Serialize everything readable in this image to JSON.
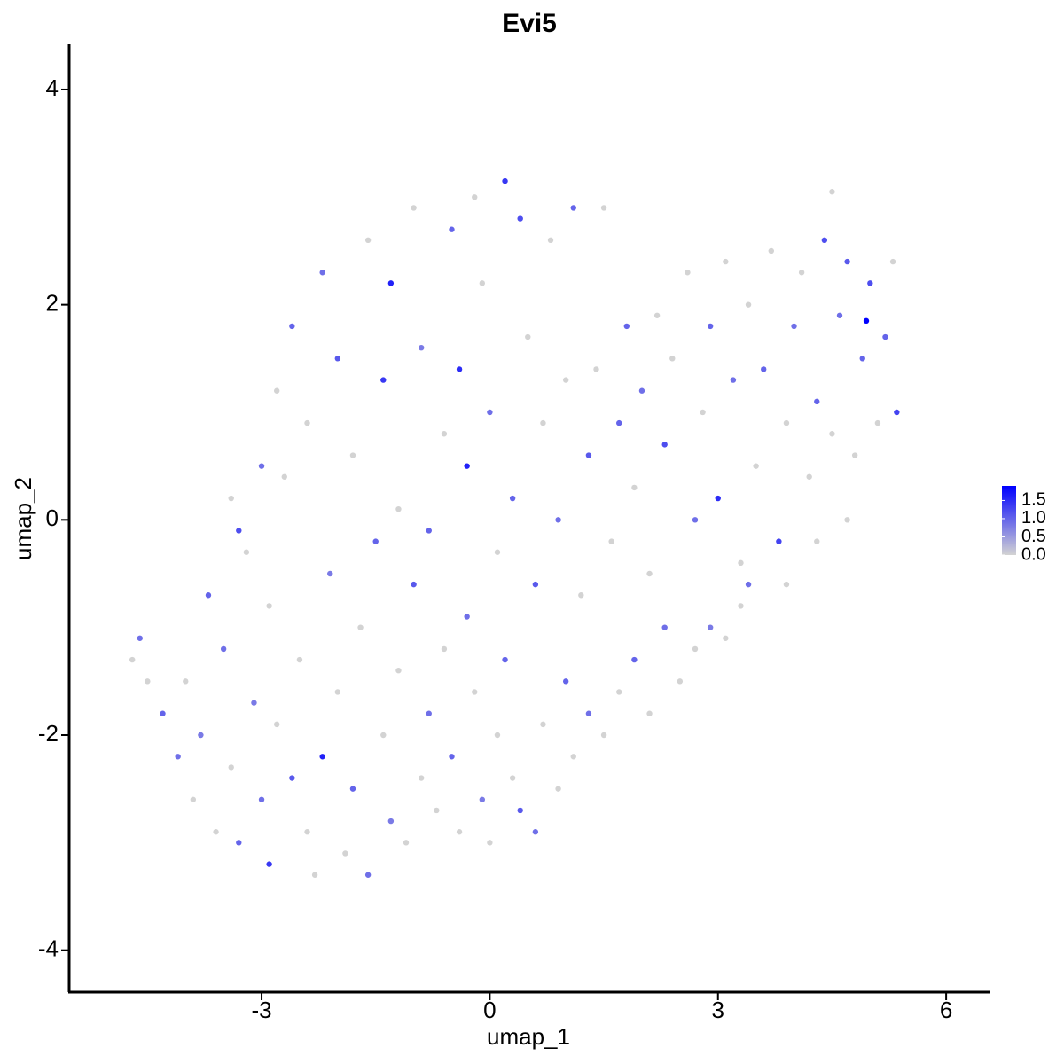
{
  "chart_data": {
    "type": "scatter",
    "title": "Evi5",
    "x_label": "umap_1",
    "y_label": "umap_2",
    "xlim": [
      -5.53,
      6.57
    ],
    "xticks": [
      -3,
      0,
      3,
      6
    ],
    "ylim": [
      -4.39,
      4.42
    ],
    "yticks": [
      -4,
      -2,
      0,
      2,
      4
    ],
    "color_scale": [
      "#d3d3d3",
      "#0000ff"
    ],
    "color_range": [
      0,
      1.9
    ],
    "colorbar_ticks": [
      {
        "value": 0,
        "label": "0.0"
      },
      {
        "value": 0.5,
        "label": "0.5"
      },
      {
        "value": 1,
        "label": "1.0"
      },
      {
        "value": 1.5,
        "label": "1.5"
      }
    ],
    "x": [
      -4.7,
      -4.6,
      -4.5,
      -4.3,
      -4.1,
      -4.0,
      -3.9,
      -3.8,
      -3.7,
      -3.6,
      -3.5,
      -3.4,
      -3.3,
      -3.2,
      -3.1,
      -3.0,
      -2.9,
      -2.9,
      -2.8,
      -2.7,
      -2.6,
      -2.5,
      -2.4,
      -2.3,
      -2.2,
      -2.1,
      -2.0,
      -1.9,
      -1.8,
      -1.7,
      -1.6,
      -1.5,
      -1.4,
      -1.3,
      -1.2,
      -1.1,
      -1.0,
      -0.9,
      -0.8,
      -0.7,
      -0.6,
      -0.5,
      -0.4,
      -0.3,
      -0.2,
      -0.1,
      0.0,
      0.1,
      0.2,
      0.3,
      0.4,
      0.6,
      0.7,
      0.9,
      1.0,
      1.1,
      1.3,
      1.5,
      1.7,
      1.9,
      2.1,
      2.3,
      2.5,
      2.7,
      2.9,
      3.1,
      3.3,
      3.4,
      -3.4,
      -3.3,
      -3.0,
      -2.8,
      -2.6,
      -2.4,
      -2.2,
      -2.0,
      -1.8,
      -1.6,
      -1.4,
      -1.3,
      -1.2,
      -1.0,
      -0.9,
      -0.8,
      -0.6,
      -0.5,
      -0.4,
      -0.3,
      -0.2,
      -0.1,
      0.0,
      0.1,
      0.2,
      0.3,
      0.4,
      0.5,
      0.6,
      0.7,
      0.8,
      0.9,
      1.0,
      1.1,
      1.2,
      1.3,
      1.4,
      1.5,
      1.6,
      1.7,
      1.8,
      1.9,
      2.0,
      2.1,
      2.2,
      2.3,
      2.4,
      2.6,
      2.7,
      2.8,
      2.9,
      3.0,
      3.1,
      3.2,
      3.3,
      3.4,
      3.5,
      3.6,
      3.7,
      3.8,
      3.9,
      4.0,
      4.1,
      4.2,
      4.3,
      4.4,
      4.5,
      4.5,
      4.6,
      4.7,
      4.8,
      4.9,
      4.95,
      5.0,
      5.1,
      5.2,
      5.3,
      5.35,
      4.7,
      4.3,
      3.9
    ],
    "y": [
      -1.3,
      -1.1,
      -1.5,
      -1.8,
      -2.2,
      -1.5,
      -2.6,
      -2.0,
      -0.7,
      -2.9,
      -1.2,
      -2.3,
      -3.0,
      -0.3,
      -1.7,
      -2.6,
      -3.2,
      -0.8,
      -1.9,
      0.4,
      -2.4,
      -1.3,
      -2.9,
      -3.3,
      -2.2,
      -0.5,
      -1.6,
      -3.1,
      -2.5,
      -1.0,
      -3.3,
      -0.2,
      -2.0,
      -2.8,
      -1.4,
      -3.0,
      -0.6,
      -2.4,
      -1.8,
      -2.7,
      -1.2,
      -2.2,
      -2.9,
      -0.9,
      -1.6,
      -2.6,
      -3.0,
      -2.0,
      -1.3,
      -2.4,
      -2.7,
      -2.9,
      -1.9,
      -2.5,
      -1.5,
      -2.2,
      -1.8,
      -2.0,
      -1.6,
      -1.3,
      -1.8,
      -1.0,
      -1.5,
      -1.2,
      -1.0,
      -1.1,
      -0.8,
      -0.6,
      0.2,
      -0.1,
      0.5,
      1.2,
      1.8,
      0.9,
      2.3,
      1.5,
      0.6,
      2.6,
      1.3,
      2.2,
      0.1,
      2.9,
      1.6,
      -0.1,
      0.8,
      2.7,
      1.4,
      0.5,
      3.0,
      2.2,
      1.0,
      -0.3,
      3.15,
      0.2,
      2.8,
      1.7,
      -0.6,
      0.9,
      2.6,
      0.0,
      1.3,
      2.9,
      -0.7,
      0.6,
      1.4,
      2.9,
      -0.2,
      0.9,
      1.8,
      0.3,
      1.2,
      -0.5,
      1.9,
      0.7,
      1.5,
      2.3,
      0.0,
      1.0,
      1.8,
      0.2,
      2.4,
      1.3,
      -0.4,
      2.0,
      0.5,
      1.4,
      2.5,
      -0.2,
      0.9,
      1.8,
      2.3,
      0.4,
      1.1,
      2.6,
      3.05,
      0.8,
      1.9,
      2.4,
      0.6,
      1.5,
      1.85,
      2.2,
      0.9,
      1.7,
      2.4,
      1.0,
      0.0,
      -0.2,
      -0.6
    ],
    "values": [
      0,
      0.9,
      0,
      1.0,
      0.9,
      0,
      0,
      0.8,
      1.0,
      0,
      0.9,
      0,
      1.0,
      0,
      0.8,
      0.9,
      1.4,
      0,
      0,
      0,
      1.1,
      0,
      0,
      0,
      1.6,
      0.8,
      0,
      0,
      1.0,
      0,
      0.9,
      1.0,
      0,
      0.8,
      0,
      0,
      1.1,
      0,
      0.9,
      0,
      0,
      1.0,
      0,
      0.9,
      0,
      0.8,
      0,
      0,
      1.0,
      0,
      1.1,
      0.9,
      0,
      0,
      1.0,
      0,
      0.9,
      0,
      0,
      1.0,
      0,
      0.9,
      0,
      0,
      0.8,
      0,
      0,
      0.9,
      0,
      1.2,
      0.9,
      0,
      1.0,
      0,
      0.9,
      1.1,
      0,
      0,
      1.4,
      1.6,
      0,
      0,
      0.8,
      1.0,
      0,
      1.0,
      1.5,
      1.6,
      0,
      0,
      0.9,
      0,
      1.4,
      1.0,
      1.2,
      0,
      1.1,
      0,
      0,
      0.9,
      0,
      1.0,
      0,
      1.1,
      0,
      0,
      0,
      1.0,
      1.0,
      0,
      0.9,
      0,
      0,
      1.2,
      0,
      0,
      0.9,
      0,
      1.0,
      1.5,
      0,
      0.9,
      0,
      0,
      0,
      1.0,
      0,
      1.3,
      0,
      0.9,
      0,
      0,
      1.0,
      1.2,
      0,
      0,
      0.9,
      1.1,
      0,
      1.0,
      1.9,
      1.2,
      0,
      1.0,
      0,
      1.3,
      0,
      0,
      0
    ]
  }
}
